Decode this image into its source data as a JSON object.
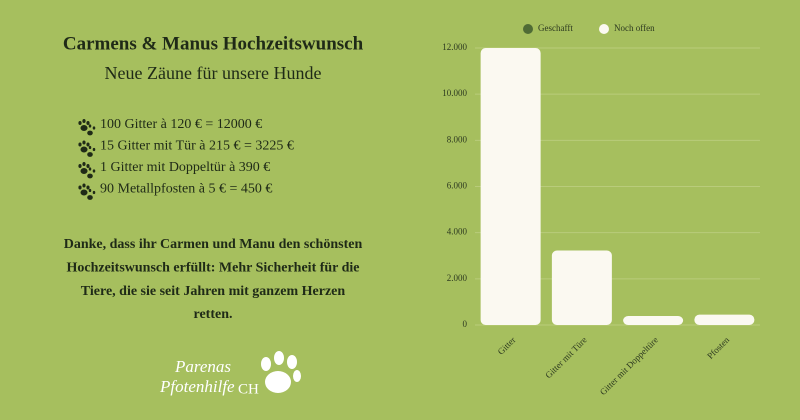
{
  "header": {
    "title": "Carmens & Manus Hochzeitswunsch",
    "subtitle": "Neue Zäune für unsere Hunde"
  },
  "items": [
    "100 Gitter à 120 € = 12000 €",
    "15 Gitter mit Tür à 215 € = 3225 €",
    "1 Gitter mit Doppeltür à 390 €",
    "90 Metallpfosten à 5 € = 450 €"
  ],
  "message": [
    "Danke, dass ihr Carmen und Manu den schönsten",
    "Hochzeitswunsch erfüllt: Mehr Sicherheit für die",
    "Tiere, die sie seit Jahren mit ganzem Herzen",
    "retten."
  ],
  "logo": {
    "line1": "Parenas",
    "line2": "Pfotenhilfe",
    "badge": "CH"
  },
  "chart_data": {
    "type": "stacked_bar",
    "categories": [
      "Gitter",
      "Gitter mit Türe",
      "Gitter mit Doppeltüre",
      "Pfosten"
    ],
    "series": [
      {
        "name": "Geschafft",
        "color": "#4f6b35",
        "values": [
          0,
          0,
          0,
          0
        ]
      },
      {
        "name": "Noch offen",
        "color": "#fbf9f1",
        "values": [
          12000,
          3225,
          390,
          450
        ]
      }
    ],
    "ylim": [
      0,
      12000
    ],
    "yticks": [
      0,
      {
        "value": 2000,
        "label": "2.000"
      },
      {
        "value": 4000,
        "label": "4.000"
      },
      {
        "value": 6000,
        "label": "6.000"
      },
      {
        "value": 8000,
        "label": "8.000"
      },
      {
        "value": 10000,
        "label": "10.000"
      },
      {
        "value": 12000,
        "label": "12.000"
      }
    ],
    "grid": true,
    "legend": "top"
  }
}
